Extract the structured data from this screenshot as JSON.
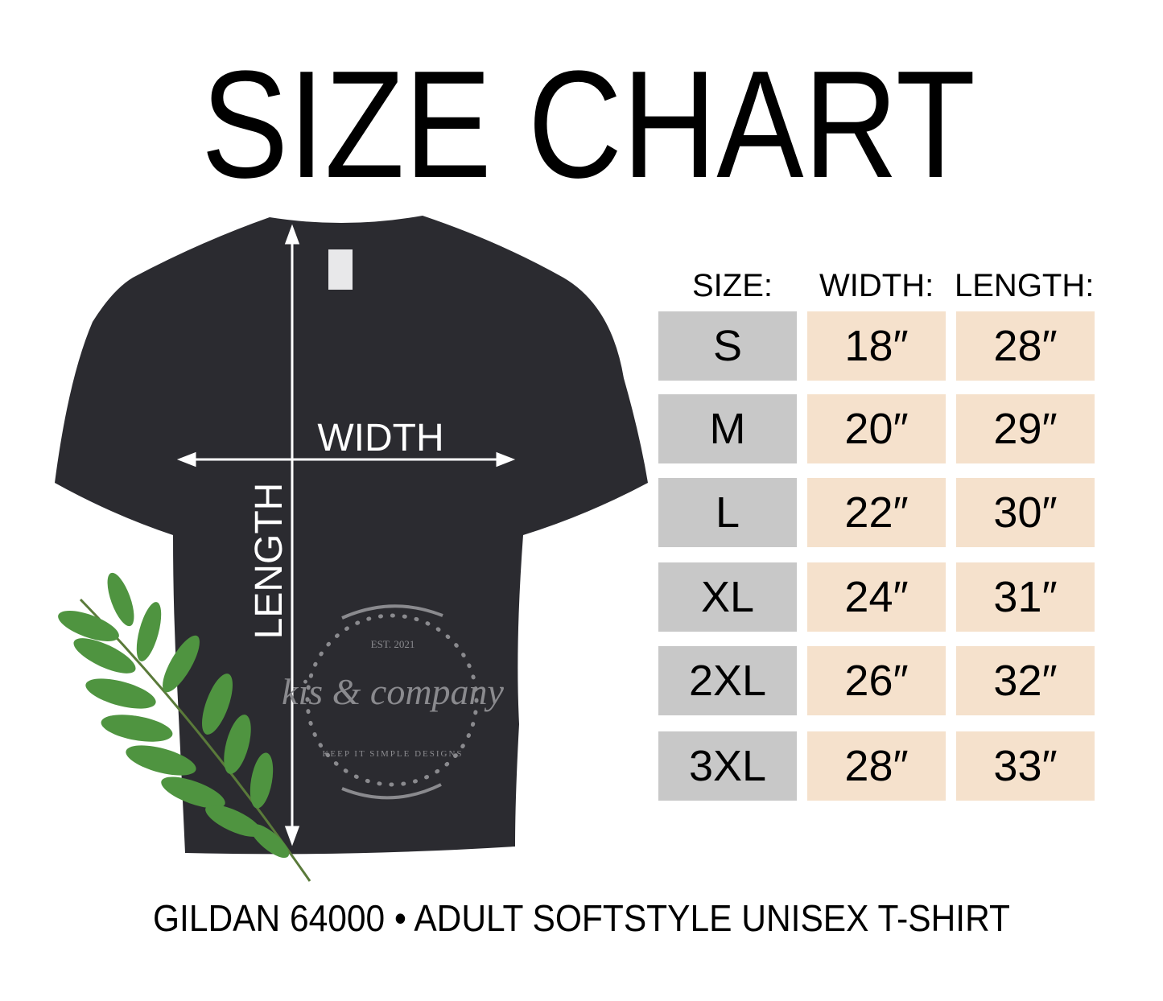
{
  "title": "SIZE CHART",
  "shirt": {
    "width_label": "WIDTH",
    "length_label": "LENGTH",
    "shirt_color": "#2b2b30",
    "logo": {
      "est": "EST. 2021",
      "name": "kis & company",
      "tagline": "KEEP IT SIMPLE DESIGNS"
    }
  },
  "table": {
    "headers": [
      "SIZE:",
      "WIDTH:",
      "LENGTH:"
    ],
    "size_cell_color": "#c8c8c8",
    "value_cell_color": "#f5e1cc",
    "rows": [
      {
        "size": "S",
        "width": "18″",
        "length": "28″"
      },
      {
        "size": "M",
        "width": "20″",
        "length": "29″"
      },
      {
        "size": "L",
        "width": "22″",
        "length": "30″"
      },
      {
        "size": "XL",
        "width": "24″",
        "length": "31″"
      },
      {
        "size": "2XL",
        "width": "26″",
        "length": "32″"
      },
      {
        "size": "3XL",
        "width": "28″",
        "length": "33″"
      }
    ]
  },
  "footer": "GILDAN 64000 • ADULT SOFTSTYLE UNISEX T-SHIRT"
}
